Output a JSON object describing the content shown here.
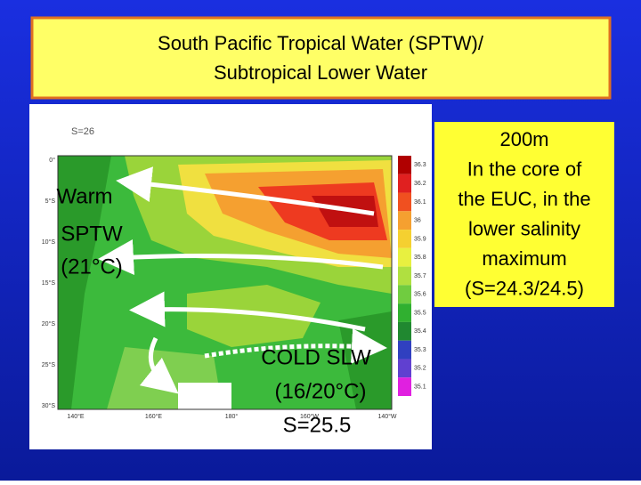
{
  "title": {
    "line1": "South Pacific Tropical Water (SPTW)/",
    "line2": "Subtropical Lower Water"
  },
  "map": {
    "label": "S=26",
    "lat_labels": [
      "0°",
      "5°S",
      "10°S",
      "15°S",
      "20°S",
      "25°S",
      "30°S"
    ],
    "lon_labels": [
      "140°E",
      "160°E",
      "180°",
      "160°W",
      "140°W"
    ],
    "colorbar": [
      "36.3",
      "36.2",
      "36.1",
      "36",
      "35.9",
      "35.8",
      "35.7",
      "35.6",
      "35.5",
      "35.4",
      "35.3",
      "35.2",
      "35.1"
    ]
  },
  "warm": [
    "Warm",
    "SPTW",
    "(21°C)"
  ],
  "cold": [
    "COLD SLW",
    "(16/20°C)",
    "S=25.5"
  ],
  "note": [
    "200m",
    "In the core of",
    "the EUC, in the",
    "lower salinity",
    "maximum",
    "(S=24.3/24.5)"
  ]
}
